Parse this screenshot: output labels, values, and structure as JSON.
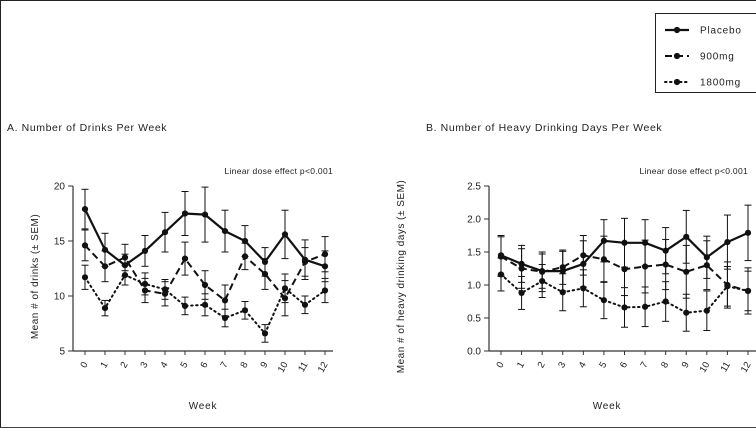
{
  "legend": {
    "items": [
      {
        "label": "Placebo",
        "style": "solid"
      },
      {
        "label": "900mg",
        "style": "dashed"
      },
      {
        "label": "1800mg",
        "style": "dotted"
      }
    ]
  },
  "colors": {
    "line": "#111111",
    "axis": "#333333"
  },
  "chart_data": [
    {
      "type": "line",
      "panel_title": "A. Number of Drinks Per Week",
      "annotation": "Linear dose effect p<0.001",
      "xlabel": "Week",
      "ylabel": "Mean # of drinks (± SEM)",
      "x": [
        0,
        1,
        2,
        3,
        4,
        5,
        6,
        7,
        8,
        9,
        10,
        11,
        12
      ],
      "xticks": [
        "0",
        "1",
        "2",
        "3",
        "4",
        "5",
        "6",
        "7",
        "8",
        "9",
        "10",
        "11",
        "12"
      ],
      "ylim": [
        5,
        20
      ],
      "yticks": [
        5,
        10,
        15,
        20
      ],
      "ytick_labels": [
        "5",
        "10",
        "15",
        "20"
      ],
      "series": [
        {
          "name": "Placebo",
          "style": "solid",
          "values": [
            17.9,
            14.2,
            12.8,
            14.1,
            15.8,
            17.5,
            17.4,
            15.9,
            15.0,
            13.1,
            15.6,
            13.3,
            12.7
          ],
          "err": [
            1.8,
            1.5,
            1.0,
            1.4,
            1.8,
            2.0,
            2.5,
            1.9,
            1.4,
            1.3,
            2.2,
            1.8,
            1.4
          ]
        },
        {
          "name": "900mg",
          "style": "dashed",
          "values": [
            14.6,
            12.7,
            13.5,
            10.5,
            10.2,
            13.4,
            11.0,
            9.6,
            13.6,
            12.0,
            9.8,
            13.1,
            13.8
          ],
          "err": [
            1.4,
            1.4,
            1.2,
            1.1,
            1.1,
            1.5,
            1.3,
            1.4,
            1.2,
            1.4,
            1.6,
            1.3,
            1.6
          ]
        },
        {
          "name": "1800mg",
          "style": "dotted",
          "values": [
            11.7,
            8.9,
            11.9,
            11.1,
            10.6,
            9.1,
            9.2,
            8.0,
            8.7,
            6.6,
            10.7,
            9.2,
            10.5
          ],
          "err": [
            1.1,
            0.7,
            0.9,
            1.0,
            0.9,
            0.8,
            1.0,
            0.8,
            0.8,
            0.8,
            1.3,
            0.8,
            1.1
          ]
        }
      ]
    },
    {
      "type": "line",
      "panel_title": "B. Number of Heavy Drinking Days Per Week",
      "annotation": "Linear dose effect p<0.001",
      "xlabel": "Week",
      "ylabel": "Mean # of heavy drinking days (± SEM)",
      "x": [
        0,
        1,
        2,
        3,
        4,
        5,
        6,
        7,
        8,
        9,
        10,
        11,
        12
      ],
      "xticks": [
        "0",
        "1",
        "2",
        "3",
        "4",
        "5",
        "6",
        "7",
        "8",
        "9",
        "10",
        "11",
        "12"
      ],
      "ylim": [
        0,
        2.5
      ],
      "yticks": [
        0,
        0.5,
        1.0,
        1.5,
        2.0,
        2.5
      ],
      "ytick_labels": [
        "0.0",
        "0.5",
        "1.0",
        "1.5",
        "2.0",
        "2.5"
      ],
      "series": [
        {
          "name": "Placebo",
          "style": "solid",
          "values": [
            1.45,
            1.32,
            1.21,
            1.21,
            1.32,
            1.67,
            1.64,
            1.64,
            1.52,
            1.73,
            1.42,
            1.65,
            1.79
          ],
          "err": [
            0.3,
            0.28,
            0.26,
            0.3,
            0.35,
            0.32,
            0.37,
            0.35,
            0.35,
            0.4,
            0.32,
            0.41,
            0.42
          ]
        },
        {
          "name": "900mg",
          "style": "dashed",
          "values": [
            1.43,
            1.25,
            1.2,
            1.27,
            1.45,
            1.39,
            1.24,
            1.28,
            1.31,
            1.2,
            1.3,
            1.0,
            0.91
          ],
          "err": [
            0.3,
            0.3,
            0.3,
            0.26,
            0.3,
            0.35,
            0.4,
            0.4,
            0.38,
            0.4,
            0.37,
            0.35,
            0.35
          ]
        },
        {
          "name": "1800mg",
          "style": "dotted",
          "values": [
            1.16,
            0.88,
            1.06,
            0.89,
            0.95,
            0.77,
            0.66,
            0.67,
            0.75,
            0.58,
            0.61,
            0.98,
            0.91
          ],
          "err": [
            0.25,
            0.25,
            0.25,
            0.28,
            0.28,
            0.28,
            0.3,
            0.3,
            0.3,
            0.28,
            0.3,
            0.3,
            0.3
          ]
        }
      ]
    }
  ]
}
